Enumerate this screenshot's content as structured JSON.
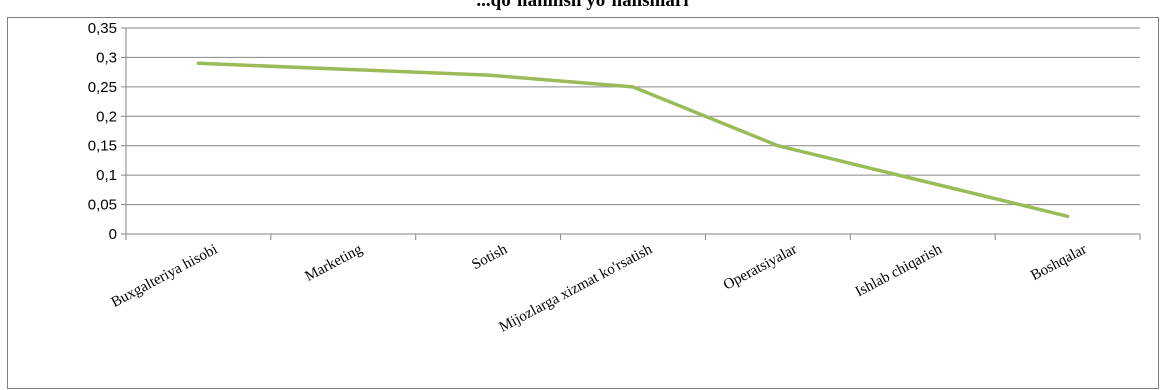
{
  "chart_data": {
    "type": "line",
    "title": "...qoʻllanilish yoʻnalishlari",
    "xlabel": "",
    "ylabel": "",
    "categories": [
      "Buxgalteriya hisobi",
      "Marketing",
      "Sotish",
      "Mijozlarga xizmat ko'rsatish",
      "Operatsiyalar",
      "Ishlab chiqarish",
      "Boshqalar"
    ],
    "values": [
      0.29,
      0.28,
      0.27,
      0.25,
      0.15,
      0.09,
      0.03
    ],
    "ylim": [
      0,
      0.35
    ],
    "yticks": [
      "0",
      "0,05",
      "0,1",
      "0,15",
      "0,2",
      "0,25",
      "0,3",
      "0,35"
    ],
    "grid": true,
    "legend": "none",
    "line_color": "#9bbb59",
    "grid_color": "#868686"
  }
}
